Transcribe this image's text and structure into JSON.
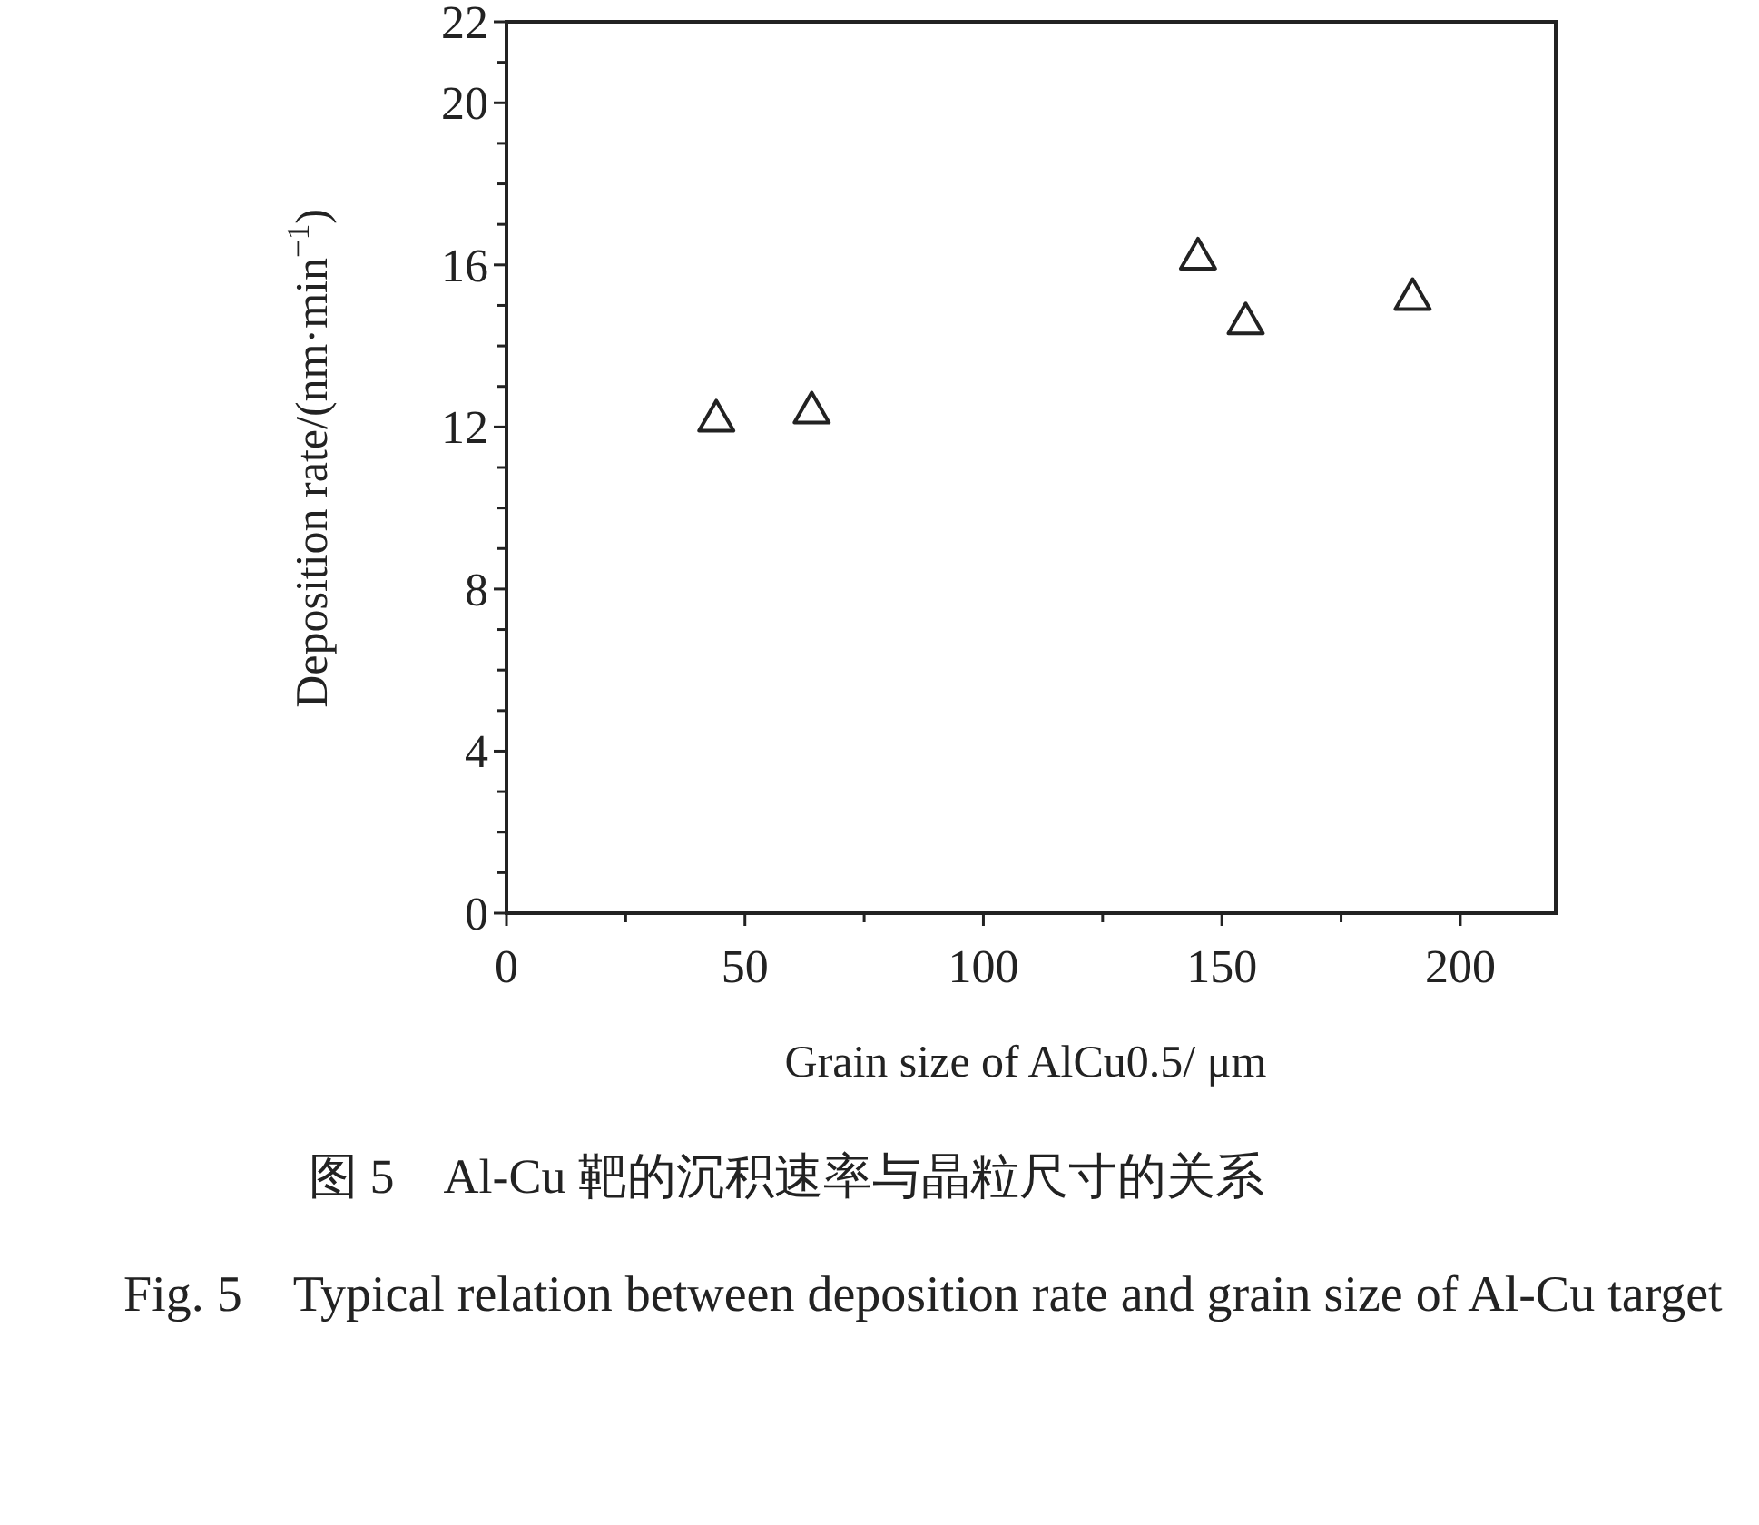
{
  "chart_data": {
    "type": "scatter",
    "xlabel": "Grain size of AlCu0.5/ μm",
    "ylabel": "Deposition rate/(nm·min$^{−1}$)",
    "annotations": [
      "图 5　Al-Cu 靶的沉积速率与晶粒尺寸的关系",
      "Fig. 5　Typical relation between deposition rate and grain size of Al-Cu target"
    ],
    "x": [
      44,
      64,
      145,
      155,
      190
    ],
    "series": [
      {
        "color": "#222222",
        "values": [
          12.2,
          12.4,
          16.2,
          14.6,
          15.2
        ]
      }
    ],
    "marker": "triangle",
    "grid": false,
    "xlim": [
      0,
      220
    ],
    "ylim": [
      0,
      22
    ],
    "xticks": [
      0,
      {
        "value": 25,
        "label": null
      },
      50,
      {
        "value": 75,
        "label": null
      },
      100,
      {
        "value": 125,
        "label": null
      },
      150,
      {
        "value": 175,
        "label": null
      },
      200
    ],
    "yticks": [
      0,
      {
        "value": 1,
        "label": null
      },
      {
        "value": 2,
        "label": null
      },
      {
        "value": 3,
        "label": null
      },
      4,
      {
        "value": 5,
        "label": null
      },
      {
        "value": 6,
        "label": null
      },
      {
        "value": 7,
        "label": null
      },
      8,
      {
        "value": 9,
        "label": null
      },
      {
        "value": 10,
        "label": null
      },
      {
        "value": 11,
        "label": null
      },
      12,
      {
        "value": 13,
        "label": null
      },
      {
        "value": 14,
        "label": null
      },
      {
        "value": 15,
        "label": null
      },
      16,
      {
        "value": 17,
        "label": null
      },
      {
        "value": 18,
        "label": null
      },
      {
        "value": 19,
        "label": null
      },
      20,
      {
        "value": 21,
        "label": null
      },
      22
    ]
  }
}
